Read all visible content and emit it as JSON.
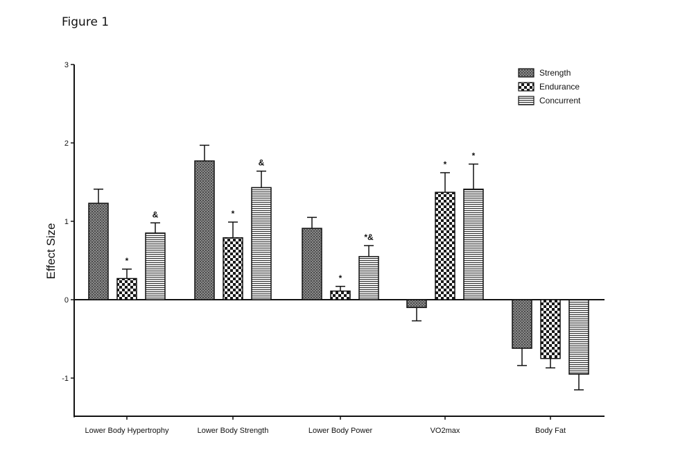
{
  "figure_label": "Figure 1",
  "chart_data": {
    "type": "bar",
    "title": "",
    "xlabel": "",
    "ylabel": "Effect Size",
    "ylim": [
      -1.5,
      3
    ],
    "yticks": [
      -1,
      0,
      1,
      2,
      3
    ],
    "legend_position": "top-right",
    "categories": [
      "Lower Body Hypertrophy",
      "Lower Body Strength",
      "Lower Body Power",
      "VO2max",
      "Body Fat"
    ],
    "series": [
      {
        "name": "Strength",
        "pattern": "dots",
        "values": [
          1.23,
          1.77,
          0.91,
          -0.1,
          -0.62
        ],
        "errors": [
          0.18,
          0.2,
          0.14,
          0.17,
          0.22
        ],
        "annotations": [
          "",
          "",
          "",
          "",
          ""
        ]
      },
      {
        "name": "Endurance",
        "pattern": "checker",
        "values": [
          0.27,
          0.79,
          0.11,
          1.37,
          -0.75
        ],
        "errors": [
          0.12,
          0.2,
          0.06,
          0.25,
          0.12
        ],
        "annotations": [
          "*",
          "*",
          "*",
          "*",
          ""
        ]
      },
      {
        "name": "Concurrent",
        "pattern": "stripes",
        "values": [
          0.85,
          1.43,
          0.55,
          1.41,
          -0.95
        ],
        "errors": [
          0.13,
          0.21,
          0.14,
          0.32,
          0.2
        ],
        "annotations": [
          "&",
          "&",
          "*&",
          "*",
          ""
        ]
      }
    ]
  }
}
